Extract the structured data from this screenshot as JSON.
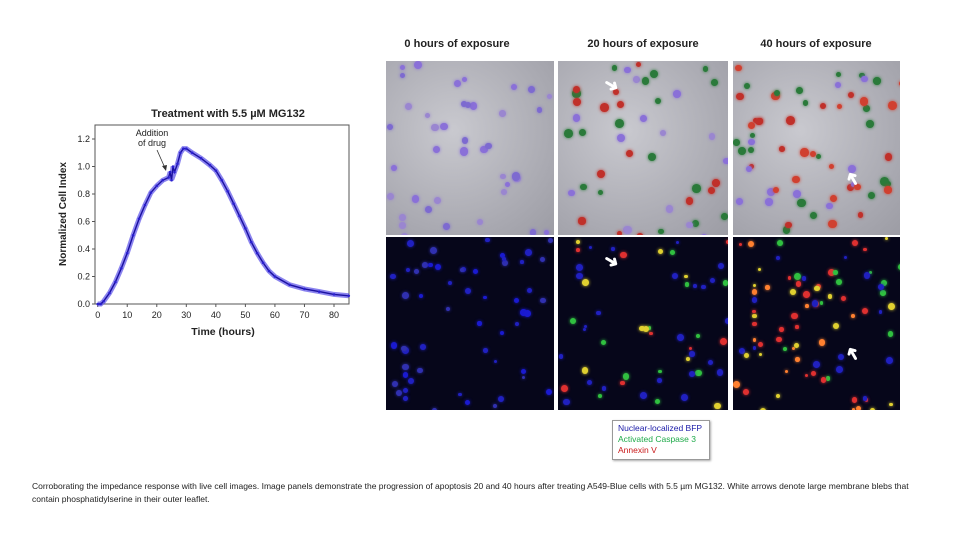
{
  "chart_data": {
    "type": "line",
    "title": "Treatment with 5.5 µM MG132",
    "xlabel": "Time (hours)",
    "ylabel": "Normalized Cell Index",
    "xlim": [
      0,
      85
    ],
    "ylim": [
      0,
      1.3
    ],
    "xticks": [
      0,
      10,
      20,
      30,
      40,
      50,
      60,
      70,
      80
    ],
    "yticks": [
      "0.0",
      "0.2",
      "0.4",
      "0.6",
      "0.8",
      "1.0",
      "1.2"
    ],
    "annotation": {
      "line1": "Addition",
      "line2": "of drug",
      "x": 24.5,
      "y": 0.96
    },
    "series": [
      {
        "name": "MG132 5.5 µM",
        "color": "#2a1fd0",
        "x": [
          0,
          1,
          2,
          4,
          6,
          8,
          10,
          12,
          14,
          16,
          18,
          20,
          22,
          24,
          24.5,
          25,
          25.5,
          26,
          27,
          28,
          29,
          30,
          32,
          35,
          38,
          40,
          42,
          44,
          46,
          48,
          50,
          52,
          54,
          56,
          58,
          60,
          65,
          70,
          75,
          80,
          85
        ],
        "y": [
          0,
          0,
          0.02,
          0.08,
          0.16,
          0.26,
          0.37,
          0.5,
          0.62,
          0.72,
          0.81,
          0.86,
          0.9,
          0.92,
          0.96,
          0.9,
          1.0,
          0.96,
          1.02,
          1.1,
          1.13,
          1.13,
          1.1,
          1.06,
          1.01,
          0.97,
          0.9,
          0.82,
          0.73,
          0.64,
          0.55,
          0.45,
          0.37,
          0.3,
          0.24,
          0.2,
          0.14,
          0.11,
          0.09,
          0.07,
          0.06
        ]
      }
    ]
  },
  "panels": {
    "titles": [
      "0 hours of exposure",
      "20 hours of exposure",
      "40 hours of exposure"
    ]
  },
  "legend": {
    "items": [
      {
        "label": "Nuclear-localized BFP",
        "color": "#1a1aa8"
      },
      {
        "label": "Activated Caspase 3",
        "color": "#1faa4a"
      },
      {
        "label": "Annexin V",
        "color": "#c81818"
      }
    ]
  },
  "caption": "Corroborating the impedance response with live cell images. Image panels demonstrate the progression of apoptosis 20 and 40 hours after treating A549-Blue cells with 5.5 µm MG132. White arrows denote large membrane blebs that contain phosphatidylserine in their outer leaflet."
}
